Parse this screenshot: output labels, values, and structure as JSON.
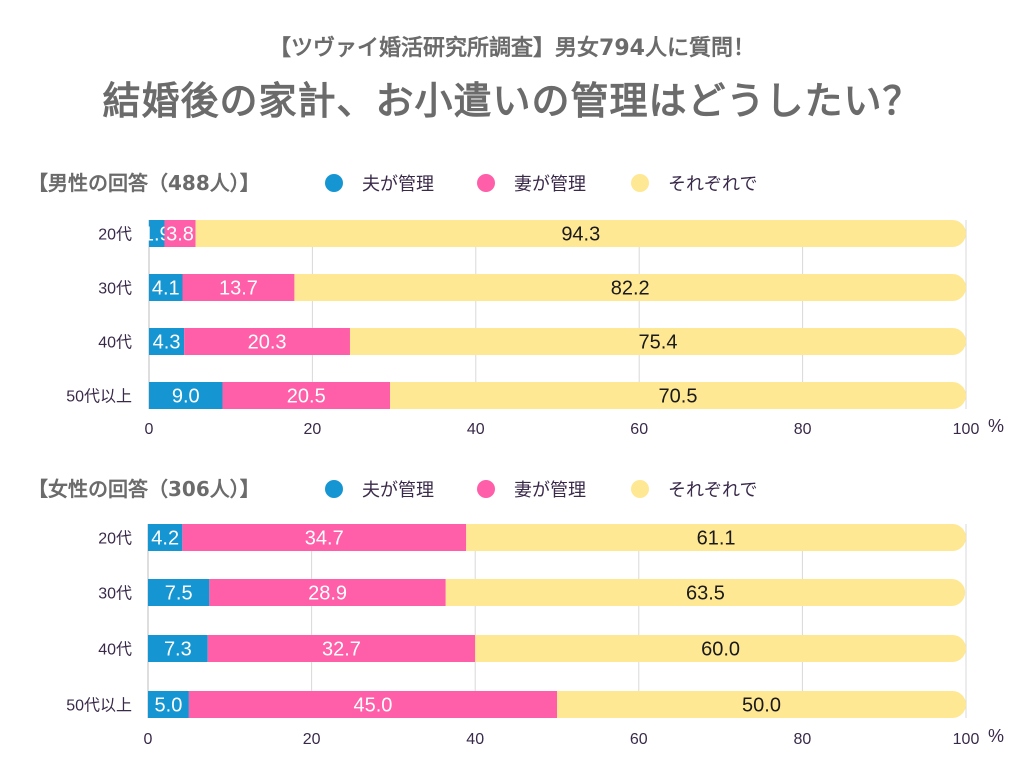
{
  "header": {
    "subtitle": "【ツヴァイ婚活研究所調査】男女794人に質問！",
    "title": "結婚後の家計、お小遣いの管理はどうしたい？"
  },
  "chart_data": [
    {
      "type": "bar",
      "orientation": "horizontal",
      "stacked": true,
      "title": "【男性の回答（488人）】",
      "categories": [
        "20代",
        "30代",
        "40代",
        "50代以上"
      ],
      "series": [
        {
          "name": "夫が管理",
          "color": "#1596d2",
          "values": [
            1.9,
            4.1,
            4.3,
            9.0
          ]
        },
        {
          "name": "妻が管理",
          "color": "#ff5fa8",
          "values": [
            3.8,
            13.7,
            20.3,
            20.5
          ]
        },
        {
          "name": "それぞれで",
          "color": "#ffe894",
          "values": [
            94.3,
            82.2,
            75.4,
            70.5
          ]
        }
      ],
      "xlim": [
        0,
        100
      ],
      "xticks": [
        "0",
        "20",
        "40",
        "60",
        "80",
        "100"
      ],
      "xunit": "%",
      "grid": true,
      "legend_position": "top"
    },
    {
      "type": "bar",
      "orientation": "horizontal",
      "stacked": true,
      "title": "【女性の回答（306人）】",
      "categories": [
        "20代",
        "30代",
        "40代",
        "50代以上"
      ],
      "series": [
        {
          "name": "夫が管理",
          "color": "#1596d2",
          "values": [
            4.2,
            7.5,
            7.3,
            5.0
          ]
        },
        {
          "name": "妻が管理",
          "color": "#ff5fa8",
          "values": [
            34.7,
            28.9,
            32.7,
            45.0
          ]
        },
        {
          "name": "それぞれで",
          "color": "#ffe894",
          "values": [
            61.1,
            63.5,
            60.0,
            50.0
          ]
        }
      ],
      "xlim": [
        0,
        100
      ],
      "xticks": [
        "0",
        "20",
        "40",
        "60",
        "80",
        "100"
      ],
      "xunit": "%",
      "grid": true,
      "legend_position": "top"
    }
  ],
  "colors": {
    "label_on_dark": "#ffffff",
    "label_on_light": "#1a1a1a",
    "grid": "#d8d8d8"
  }
}
